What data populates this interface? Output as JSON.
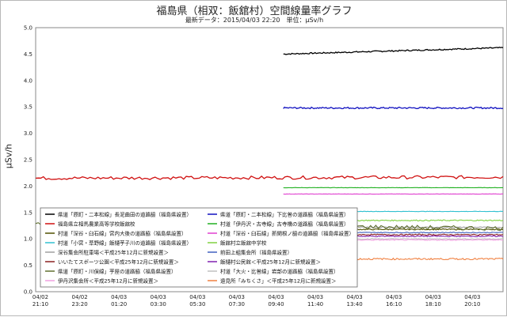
{
  "chart_data": {
    "type": "line",
    "title": "福島県（相双：飯舘村）空間線量率グラフ",
    "subtitle": "最新データ：2015/04/03 22:20　単位：μSv/h",
    "ylabel": "μSv/h",
    "xlabel": "",
    "ylim": [
      0,
      5.0
    ],
    "yticks": [
      "0.0",
      "0.5",
      "1.0",
      "1.5",
      "2.0",
      "2.5",
      "3.0",
      "3.5",
      "4.0",
      "4.5",
      "5.0"
    ],
    "ytick_values": [
      0,
      0.5,
      1.0,
      1.5,
      2.0,
      2.5,
      3.0,
      3.5,
      4.0,
      4.5,
      5.0
    ],
    "xticks": [
      {
        "date": "04/02",
        "time": "21:10"
      },
      {
        "date": "04/02",
        "time": "23:20"
      },
      {
        "date": "04/03",
        "time": "01:20"
      },
      {
        "date": "04/03",
        "time": "03:30"
      },
      {
        "date": "04/03",
        "time": "05:30"
      },
      {
        "date": "04/03",
        "time": "07:30"
      },
      {
        "date": "04/03",
        "time": "09:40"
      },
      {
        "date": "04/03",
        "time": "11:40"
      },
      {
        "date": "04/03",
        "time": "13:40"
      },
      {
        "date": "04/03",
        "time": "16:10"
      },
      {
        "date": "04/03",
        "time": "18:10"
      },
      {
        "date": "04/03",
        "time": "20:10"
      }
    ],
    "grid": true,
    "legend_position": "bottom-inside",
    "series": [
      {
        "name": "県道「原町・二本松線」長泥曲田の道路脇（福島県設置）",
        "color": "#000000",
        "start": 0.53,
        "level": 4.5,
        "end_level": 4.62,
        "noise": 0.012
      },
      {
        "name": "県道「原町・二本松線」下比曽の道路脇（福島県設置）",
        "color": "#1010c0",
        "start": 0.53,
        "level": 3.48,
        "end_level": 3.48,
        "noise": 0.015
      },
      {
        "name": "福島県立相馬農業高等学校飯舘校",
        "color": "#d01010",
        "start": 0.0,
        "level": 2.15,
        "end_level": 2.17,
        "noise": 0.03
      },
      {
        "name": "村道「伊丹沢・古寺線」古寺橋の道路脇（福島県設置）",
        "color": "#20b020",
        "start": 0.53,
        "level": 1.97,
        "end_level": 1.97,
        "noise": 0.003
      },
      {
        "name": "村道「深谷・臼石線」宮内大後の道路脇（福島県設置）",
        "color": "#505000",
        "start": 0.53,
        "level": 1.18,
        "end_level": 1.18,
        "noise": 0.01
      },
      {
        "name": "村道「深谷・臼石線」新関根ノ脇の道路脇（福島県設置）",
        "color": "#e040d0",
        "start": 0.53,
        "level": 1.85,
        "end_level": 1.85,
        "noise": 0.003
      },
      {
        "name": "村道「小宮・草野線」飯樋芋子川の道路脇（福島県設置）",
        "color": "#30c0d0",
        "start": 0.53,
        "level": 1.52,
        "end_level": 1.52,
        "noise": 0.004
      },
      {
        "name": "飯舘村立飯舘中学校",
        "color": "#80d040",
        "start": 0.53,
        "level": 1.35,
        "end_level": 1.35,
        "noise": 0.01
      },
      {
        "name": "深谷集会所駐車場＜平成25年12月に新規設置＞",
        "color": "#a0a0a0",
        "start": 0.53,
        "level": 1.22,
        "end_level": 1.22,
        "noise": 0.008
      },
      {
        "name": "前田上組集会所（福島県設置）",
        "color": "#4060c0",
        "start": 0.53,
        "level": 1.12,
        "end_level": 1.12,
        "noise": 0.008
      },
      {
        "name": "いいたてスポーツ公園＜平成25年12月に新規設置＞",
        "color": "#8b2020",
        "start": 0.53,
        "level": 1.08,
        "end_level": 1.08,
        "noise": 0.01
      },
      {
        "name": "飯樋村公民館＜平成25年12月に新規設置＞",
        "color": "#8020b0",
        "start": 0.53,
        "level": 1.05,
        "end_level": 1.05,
        "noise": 0.01
      },
      {
        "name": "県道「原町・川俣線」芋屋の道路脇（福島県設置）",
        "color": "#607030",
        "start": 0.0,
        "level": 1.3,
        "end_level": 1.2,
        "noise": 0.04
      },
      {
        "name": "村道「大火・比曽線」岩部の道路脇（福島県設置）",
        "color": "#c0c0c0",
        "start": 0.53,
        "level": 1.0,
        "end_level": 1.0,
        "noise": 0.008
      },
      {
        "name": "伊丹沢集会所＜平成25年12月に新規設置＞",
        "color": "#f0a0e0",
        "start": 0.53,
        "level": 0.98,
        "end_level": 0.98,
        "noise": 0.008
      },
      {
        "name": "遠見所「みちくさ」＜平成25年12月に新規設置＞",
        "color": "#f08040",
        "start": 0.53,
        "level": 0.62,
        "end_level": 0.62,
        "noise": 0.015
      }
    ]
  },
  "colors": {
    "grid": "#dddddd",
    "axis": "#888888",
    "legend_border": "#666666"
  }
}
